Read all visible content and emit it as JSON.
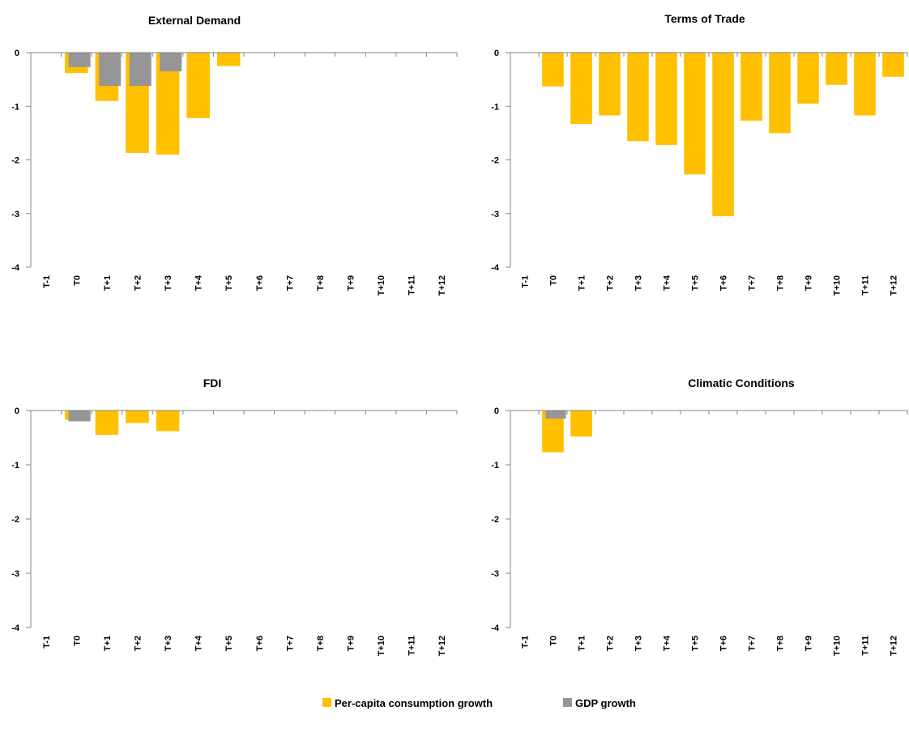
{
  "colors": {
    "consumption": "#FFC000",
    "gdp": "#969696",
    "axis": "#868686"
  },
  "legend": {
    "items": [
      {
        "label": "Per-capita consumption growth",
        "color": "#FFC000"
      },
      {
        "label": "GDP growth",
        "color": "#969696"
      }
    ]
  },
  "chart_data": [
    {
      "type": "bar",
      "title": "External Demand",
      "categories": [
        "T-1",
        "T0",
        "T+1",
        "T+2",
        "T+3",
        "T+4",
        "T+5",
        "T+6",
        "T+7",
        "T+8",
        "T+9",
        "T+10",
        "T+11",
        "T+12"
      ],
      "ylim": [
        -4,
        0
      ],
      "yticks": [
        "0",
        "-1",
        "-2",
        "-3",
        "-4"
      ],
      "series": [
        {
          "name": "Per-capita consumption growth",
          "values": [
            0,
            -0.38,
            -0.9,
            -1.87,
            -1.9,
            -1.22,
            -0.25,
            0,
            0,
            0,
            0,
            0,
            0,
            0
          ]
        },
        {
          "name": "GDP growth",
          "values": [
            0,
            -0.27,
            -0.62,
            -0.62,
            -0.35,
            0,
            0,
            0,
            0,
            0,
            0,
            0,
            0,
            0
          ]
        }
      ]
    },
    {
      "type": "bar",
      "title": "Terms of Trade",
      "categories": [
        "T-1",
        "T0",
        "T+1",
        "T+2",
        "T+3",
        "T+4",
        "T+5",
        "T+6",
        "T+7",
        "T+8",
        "T+9",
        "T+10",
        "T+11",
        "T+12"
      ],
      "ylim": [
        -4,
        0
      ],
      "yticks": [
        "0",
        "-1",
        "-2",
        "-3",
        "-4"
      ],
      "series": [
        {
          "name": "Per-capita consumption growth",
          "values": [
            0,
            -0.63,
            -1.33,
            -1.17,
            -1.65,
            -1.72,
            -2.27,
            -3.05,
            -1.27,
            -1.5,
            -0.95,
            -0.6,
            -1.17,
            -0.45
          ]
        },
        {
          "name": "GDP growth",
          "values": [
            0,
            0,
            0,
            0,
            0,
            0,
            0,
            0,
            0,
            0,
            0,
            0,
            0,
            0
          ]
        }
      ]
    },
    {
      "type": "bar",
      "title": "FDI",
      "categories": [
        "T-1",
        "T0",
        "T+1",
        "T+2",
        "T+3",
        "T+4",
        "T+5",
        "T+6",
        "T+7",
        "T+8",
        "T+9",
        "T+10",
        "T+11",
        "T+12"
      ],
      "ylim": [
        -4,
        0
      ],
      "yticks": [
        "0",
        "-1",
        "-2",
        "-3",
        "-4"
      ],
      "series": [
        {
          "name": "Per-capita consumption growth",
          "values": [
            0,
            -0.17,
            -0.45,
            -0.23,
            -0.38,
            0,
            0,
            0,
            0,
            0,
            0,
            0,
            0,
            0
          ]
        },
        {
          "name": "GDP growth",
          "values": [
            0,
            -0.2,
            0,
            0,
            0,
            0,
            0,
            0,
            0,
            0,
            0,
            0,
            0,
            0
          ]
        }
      ]
    },
    {
      "type": "bar",
      "title": "Climatic Conditions",
      "categories": [
        "T-1",
        "T0",
        "T+1",
        "T+2",
        "T+3",
        "T+4",
        "T+5",
        "T+6",
        "T+7",
        "T+8",
        "T+9",
        "T+10",
        "T+11",
        "T+12"
      ],
      "ylim": [
        -4,
        0
      ],
      "yticks": [
        "0",
        "-1",
        "-2",
        "-3",
        "-4"
      ],
      "series": [
        {
          "name": "Per-capita consumption growth",
          "values": [
            0,
            -0.77,
            -0.48,
            0,
            0,
            0,
            0,
            0,
            0,
            0,
            0,
            0,
            0,
            0
          ]
        },
        {
          "name": "GDP growth",
          "values": [
            0,
            -0.15,
            0,
            0,
            0,
            0,
            0,
            0,
            0,
            0,
            0,
            0,
            0,
            0
          ]
        }
      ]
    }
  ]
}
